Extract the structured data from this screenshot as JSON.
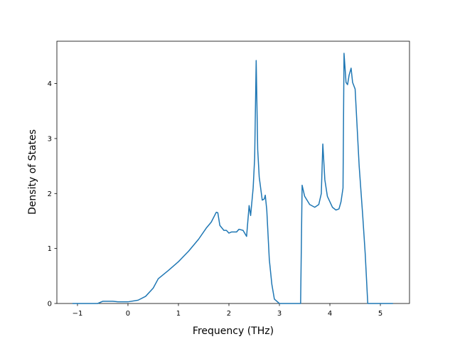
{
  "chart_data": {
    "type": "line",
    "x_label": "Frequency (THz)",
    "y_label": "Density of States",
    "x": [
      -1.1,
      -0.6,
      -0.5,
      -0.3,
      -0.2,
      0,
      0.2,
      0.35,
      0.5,
      0.6,
      0.8,
      1.0,
      1.2,
      1.4,
      1.55,
      1.65,
      1.75,
      1.78,
      1.82,
      1.9,
      1.95,
      2.0,
      2.05,
      2.15,
      2.2,
      2.28,
      2.35,
      2.4,
      2.43,
      2.48,
      2.51,
      2.54,
      2.57,
      2.6,
      2.66,
      2.7,
      2.72,
      2.75,
      2.8,
      2.85,
      2.9,
      3.0,
      3.42,
      3.45,
      3.5,
      3.6,
      3.7,
      3.78,
      3.83,
      3.86,
      3.9,
      3.95,
      4.05,
      4.12,
      4.18,
      4.22,
      4.26,
      4.28,
      4.32,
      4.35,
      4.38,
      4.42,
      4.45,
      4.5,
      4.58,
      4.65,
      4.7,
      4.75,
      5.25
    ],
    "series": [
      {
        "color": "#1f77b4",
        "values": [
          0,
          0,
          0.04,
          0.04,
          0.03,
          0.03,
          0.06,
          0.13,
          0.28,
          0.45,
          0.6,
          0.76,
          0.95,
          1.17,
          1.37,
          1.48,
          1.66,
          1.65,
          1.42,
          1.33,
          1.33,
          1.28,
          1.3,
          1.3,
          1.35,
          1.33,
          1.22,
          1.78,
          1.6,
          2.1,
          2.65,
          4.42,
          2.8,
          2.3,
          1.88,
          1.9,
          1.97,
          1.7,
          0.8,
          0.35,
          0.08,
          0,
          0,
          2.15,
          1.95,
          1.8,
          1.75,
          1.8,
          2.0,
          2.9,
          2.25,
          1.95,
          1.75,
          1.7,
          1.72,
          1.85,
          2.1,
          4.55,
          4.02,
          3.98,
          4.15,
          4.28,
          4.02,
          3.9,
          2.5,
          1.6,
          0.9,
          0,
          0
        ]
      }
    ],
    "xlim": [
      -1.408,
      5.577
    ],
    "xticks": [
      {
        "value": -1,
        "label": "−1"
      },
      0,
      1,
      2,
      3,
      4,
      5
    ],
    "ylim": [
      0,
      4.77
    ],
    "yticks": [
      0,
      1,
      2,
      3,
      4
    ]
  }
}
